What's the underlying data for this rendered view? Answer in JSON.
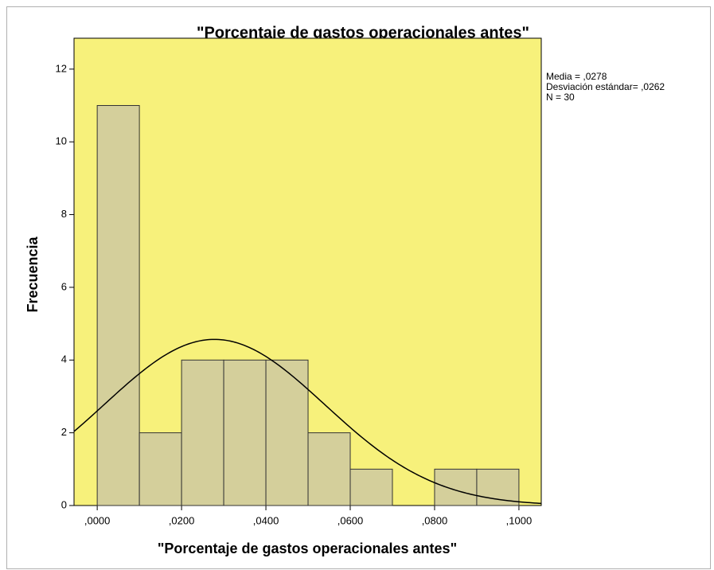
{
  "chart_data": {
    "type": "histogram",
    "title": "\"Porcentaje de gastos operacionales antes\"",
    "x_label": "\"Porcentaje de gastos operacionales antes\"",
    "y_label": "Frecuencia",
    "bins": [
      0,
      0.01,
      0.02,
      0.03,
      0.04,
      0.05,
      0.06,
      0.07,
      0.08,
      0.09,
      0.1
    ],
    "counts": [
      11,
      2,
      4,
      4,
      4,
      2,
      1,
      0,
      1,
      1
    ],
    "color": "#d4cf9b",
    "background": "#f7f17b",
    "xlim": [
      -0.0055,
      0.1053
    ],
    "ylim": [
      0,
      12.85
    ],
    "xticks": [
      {
        "value": 0,
        "label": ",0000"
      },
      {
        "value": 0.02,
        "label": ",0200"
      },
      {
        "value": 0.04,
        "label": ",0400"
      },
      {
        "value": 0.06,
        "label": ",0600"
      },
      {
        "value": 0.08,
        "label": ",0800"
      },
      {
        "value": 0.1,
        "label": ",1000"
      }
    ],
    "yticks": [
      0,
      2,
      4,
      6,
      8,
      10,
      12
    ],
    "normal_curve": true,
    "stats": [
      {
        "text": "Media = ,0278",
        "value": 0.0278
      },
      {
        "text": "Desviación estándar= ,0262",
        "value": 0.0262
      },
      {
        "text": "N = 30",
        "value": 30
      }
    ]
  }
}
